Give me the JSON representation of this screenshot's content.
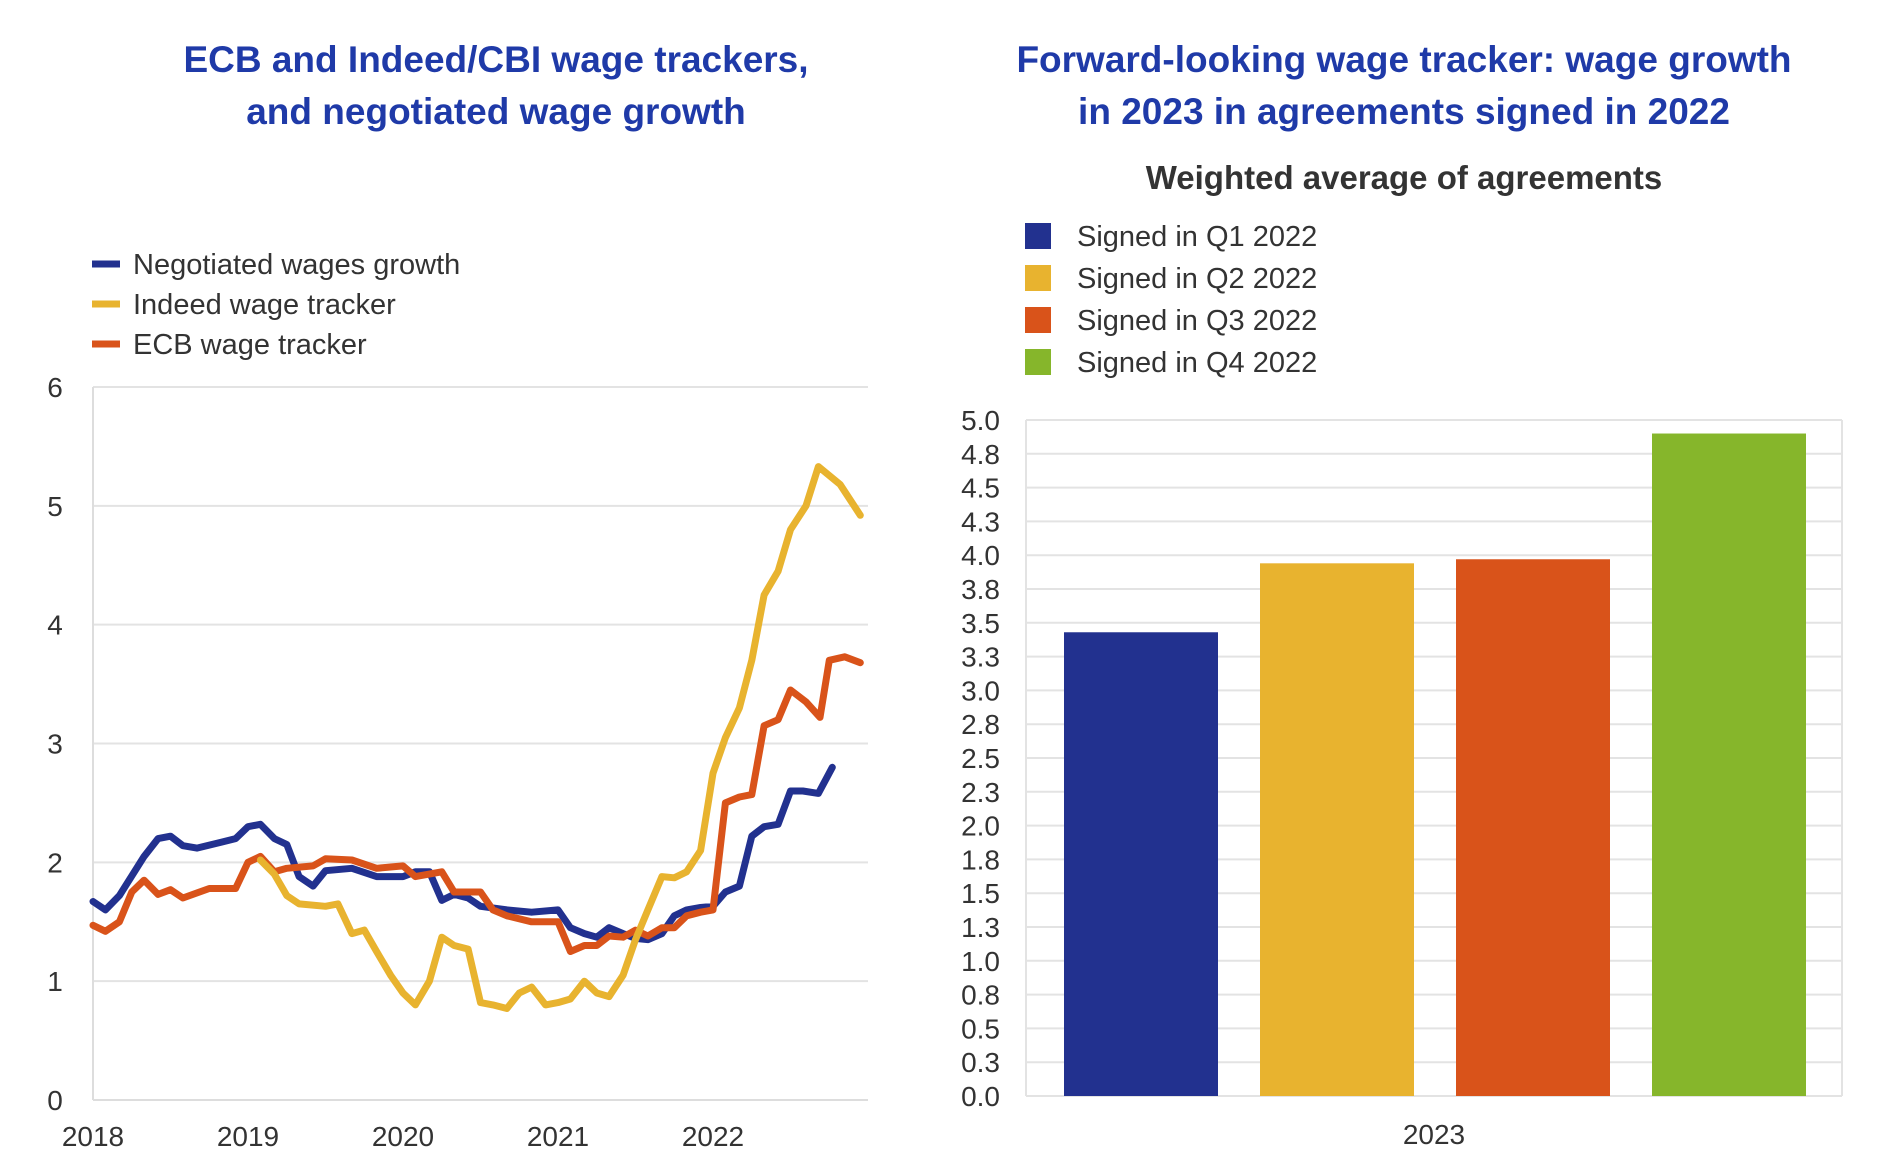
{
  "chart_data": [
    {
      "type": "line",
      "title_lines": [
        "ECB and Indeed/CBI wage trackers,",
        "and negotiated wage growth"
      ],
      "xlabel": "",
      "ylabel": "",
      "xlim": [
        2018,
        2023
      ],
      "ylim": [
        0,
        6
      ],
      "x_ticks": [
        "2018",
        "2019",
        "2020",
        "2021",
        "2022"
      ],
      "y_ticks": [
        "0",
        "1",
        "2",
        "3",
        "4",
        "5",
        "6"
      ],
      "grid": true,
      "legend_position": "top-left",
      "series": [
        {
          "name": "Negotiated wages growth",
          "color": "#22318f",
          "points": [
            [
              2018.0,
              1.67
            ],
            [
              2018.08,
              1.6
            ],
            [
              2018.17,
              1.72
            ],
            [
              2018.33,
              2.05
            ],
            [
              2018.42,
              2.2
            ],
            [
              2018.5,
              2.22
            ],
            [
              2018.58,
              2.14
            ],
            [
              2018.67,
              2.12
            ],
            [
              2018.83,
              2.17
            ],
            [
              2018.92,
              2.2
            ],
            [
              2019.0,
              2.3
            ],
            [
              2019.08,
              2.32
            ],
            [
              2019.17,
              2.2
            ],
            [
              2019.25,
              2.15
            ],
            [
              2019.33,
              1.88
            ],
            [
              2019.42,
              1.8
            ],
            [
              2019.5,
              1.93
            ],
            [
              2019.67,
              1.95
            ],
            [
              2019.83,
              1.88
            ],
            [
              2020.0,
              1.88
            ],
            [
              2020.08,
              1.92
            ],
            [
              2020.17,
              1.92
            ],
            [
              2020.25,
              1.68
            ],
            [
              2020.33,
              1.73
            ],
            [
              2020.42,
              1.7
            ],
            [
              2020.5,
              1.63
            ],
            [
              2020.67,
              1.6
            ],
            [
              2020.83,
              1.58
            ],
            [
              2021.0,
              1.6
            ],
            [
              2021.08,
              1.45
            ],
            [
              2021.17,
              1.4
            ],
            [
              2021.25,
              1.37
            ],
            [
              2021.33,
              1.45
            ],
            [
              2021.42,
              1.4
            ],
            [
              2021.5,
              1.36
            ],
            [
              2021.58,
              1.35
            ],
            [
              2021.67,
              1.4
            ],
            [
              2021.75,
              1.55
            ],
            [
              2021.83,
              1.6
            ],
            [
              2021.92,
              1.62
            ],
            [
              2022.0,
              1.63
            ],
            [
              2022.08,
              1.75
            ],
            [
              2022.17,
              1.8
            ],
            [
              2022.25,
              2.22
            ],
            [
              2022.33,
              2.3
            ],
            [
              2022.42,
              2.32
            ],
            [
              2022.5,
              2.6
            ],
            [
              2022.58,
              2.6
            ],
            [
              2022.68,
              2.58
            ],
            [
              2022.77,
              2.8
            ]
          ]
        },
        {
          "name": "Indeed wage tracker",
          "color": "#e8b32f",
          "points": [
            [
              2019.08,
              2.02
            ],
            [
              2019.17,
              1.9
            ],
            [
              2019.25,
              1.72
            ],
            [
              2019.33,
              1.65
            ],
            [
              2019.5,
              1.63
            ],
            [
              2019.58,
              1.65
            ],
            [
              2019.67,
              1.4
            ],
            [
              2019.75,
              1.43
            ],
            [
              2019.83,
              1.25
            ],
            [
              2019.92,
              1.05
            ],
            [
              2020.0,
              0.9
            ],
            [
              2020.08,
              0.8
            ],
            [
              2020.17,
              1.0
            ],
            [
              2020.25,
              1.37
            ],
            [
              2020.33,
              1.3
            ],
            [
              2020.42,
              1.27
            ],
            [
              2020.5,
              0.82
            ],
            [
              2020.58,
              0.8
            ],
            [
              2020.67,
              0.77
            ],
            [
              2020.75,
              0.9
            ],
            [
              2020.83,
              0.95
            ],
            [
              2020.92,
              0.8
            ],
            [
              2021.0,
              0.82
            ],
            [
              2021.08,
              0.85
            ],
            [
              2021.17,
              1.0
            ],
            [
              2021.25,
              0.9
            ],
            [
              2021.33,
              0.87
            ],
            [
              2021.42,
              1.05
            ],
            [
              2021.5,
              1.35
            ],
            [
              2021.58,
              1.6
            ],
            [
              2021.67,
              1.88
            ],
            [
              2021.75,
              1.87
            ],
            [
              2021.83,
              1.92
            ],
            [
              2021.92,
              2.1
            ],
            [
              2022.0,
              2.75
            ],
            [
              2022.08,
              3.05
            ],
            [
              2022.17,
              3.3
            ],
            [
              2022.25,
              3.7
            ],
            [
              2022.33,
              4.25
            ],
            [
              2022.42,
              4.45
            ],
            [
              2022.5,
              4.8
            ],
            [
              2022.6,
              5.0
            ],
            [
              2022.68,
              5.33
            ],
            [
              2022.82,
              5.18
            ],
            [
              2022.95,
              4.92
            ]
          ]
        },
        {
          "name": "ECB wage tracker",
          "color": "#d9531a",
          "points": [
            [
              2018.0,
              1.47
            ],
            [
              2018.08,
              1.42
            ],
            [
              2018.17,
              1.5
            ],
            [
              2018.25,
              1.75
            ],
            [
              2018.33,
              1.85
            ],
            [
              2018.42,
              1.73
            ],
            [
              2018.5,
              1.77
            ],
            [
              2018.58,
              1.7
            ],
            [
              2018.75,
              1.78
            ],
            [
              2018.92,
              1.78
            ],
            [
              2019.0,
              2.0
            ],
            [
              2019.08,
              2.05
            ],
            [
              2019.17,
              1.92
            ],
            [
              2019.25,
              1.95
            ],
            [
              2019.42,
              1.97
            ],
            [
              2019.5,
              2.03
            ],
            [
              2019.67,
              2.02
            ],
            [
              2019.83,
              1.95
            ],
            [
              2020.0,
              1.97
            ],
            [
              2020.08,
              1.88
            ],
            [
              2020.25,
              1.92
            ],
            [
              2020.33,
              1.75
            ],
            [
              2020.5,
              1.75
            ],
            [
              2020.58,
              1.6
            ],
            [
              2020.67,
              1.55
            ],
            [
              2020.83,
              1.5
            ],
            [
              2021.0,
              1.5
            ],
            [
              2021.08,
              1.25
            ],
            [
              2021.17,
              1.3
            ],
            [
              2021.25,
              1.3
            ],
            [
              2021.33,
              1.38
            ],
            [
              2021.42,
              1.37
            ],
            [
              2021.5,
              1.43
            ],
            [
              2021.58,
              1.38
            ],
            [
              2021.67,
              1.45
            ],
            [
              2021.75,
              1.45
            ],
            [
              2021.83,
              1.55
            ],
            [
              2021.92,
              1.58
            ],
            [
              2022.0,
              1.6
            ],
            [
              2022.08,
              2.5
            ],
            [
              2022.17,
              2.55
            ],
            [
              2022.25,
              2.57
            ],
            [
              2022.33,
              3.15
            ],
            [
              2022.42,
              3.2
            ],
            [
              2022.5,
              3.45
            ],
            [
              2022.6,
              3.35
            ],
            [
              2022.69,
              3.22
            ],
            [
              2022.75,
              3.7
            ],
            [
              2022.85,
              3.73
            ],
            [
              2022.95,
              3.68
            ]
          ]
        }
      ]
    },
    {
      "type": "bar",
      "title_lines": [
        "Forward-looking wage tracker: wage growth",
        "in 2023 in agreements signed in 2022"
      ],
      "subtitle": "Weighted average of agreements",
      "categories": [
        "2023"
      ],
      "ylim": [
        0,
        5
      ],
      "y_ticks": [
        "0.0",
        "0.3",
        "0.5",
        "0.8",
        "1.0",
        "1.3",
        "1.5",
        "1.8",
        "2.0",
        "2.3",
        "2.5",
        "2.8",
        "3.0",
        "3.3",
        "3.5",
        "3.8",
        "4.0",
        "4.3",
        "4.5",
        "4.8",
        "5.0"
      ],
      "grid": true,
      "legend_position": "top-left",
      "series": [
        {
          "name": "Signed in Q1 2022",
          "color": "#22318f",
          "values": [
            3.43
          ]
        },
        {
          "name": "Signed in Q2 2022",
          "color": "#e8b32f",
          "values": [
            3.94
          ]
        },
        {
          "name": "Signed in Q3 2022",
          "color": "#d9531a",
          "values": [
            3.97
          ]
        },
        {
          "name": "Signed in Q4 2022",
          "color": "#86b62b",
          "values": [
            4.9
          ]
        }
      ]
    }
  ]
}
